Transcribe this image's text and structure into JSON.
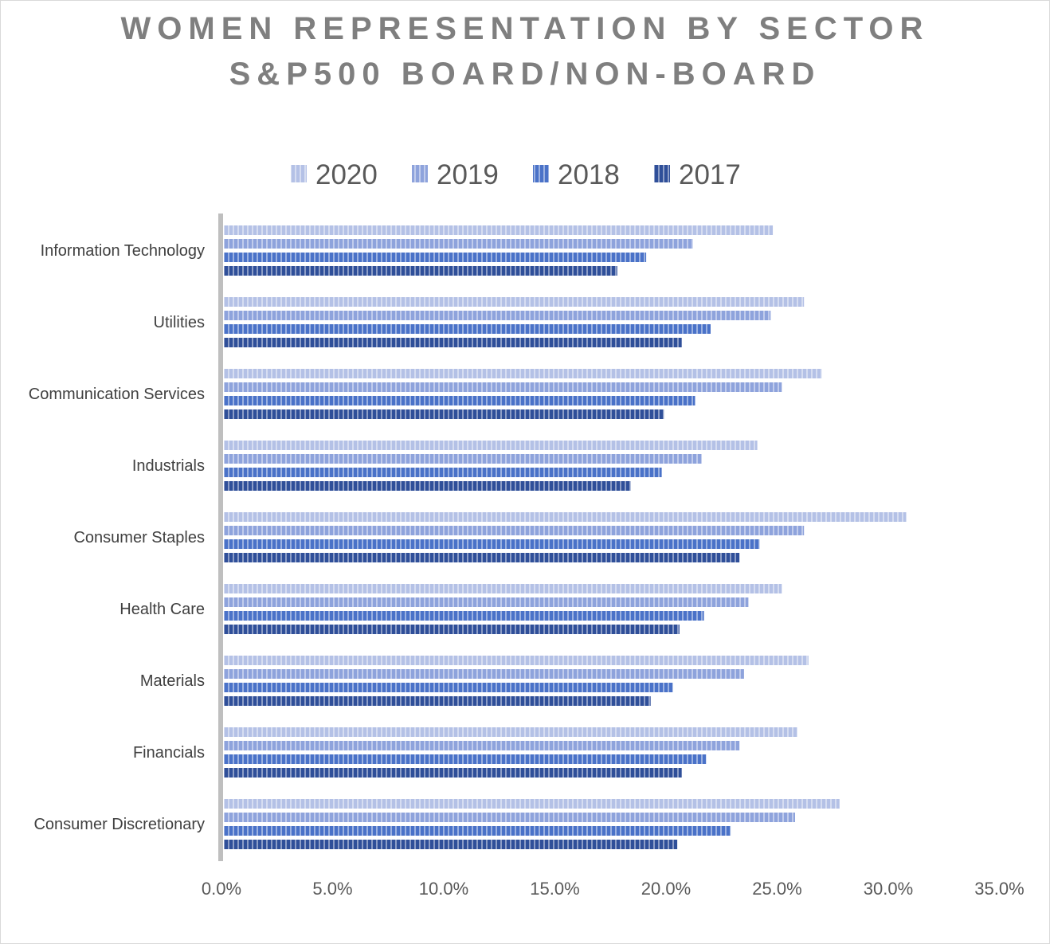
{
  "title_line1": "WOMEN REPRESENTATION BY SECTOR",
  "title_line2": "S&P500 BOARD/NON-BOARD",
  "chart_data": {
    "type": "bar",
    "orientation": "horizontal",
    "categories": [
      "Information Technology",
      "Utilities",
      "Communication Services",
      "Industrials",
      "Consumer Staples",
      "Health Care",
      "Materials",
      "Financials",
      "Consumer Discretionary"
    ],
    "series": [
      {
        "name": "2020",
        "color": "#b4c1e6",
        "values": [
          24.7,
          26.1,
          26.9,
          24.0,
          30.7,
          25.1,
          26.3,
          25.8,
          27.7
        ]
      },
      {
        "name": "2019",
        "color": "#8ea3dc",
        "values": [
          21.1,
          24.6,
          25.1,
          21.5,
          26.1,
          23.6,
          23.4,
          23.2,
          25.7
        ]
      },
      {
        "name": "2018",
        "color": "#4a72c8",
        "values": [
          19.0,
          21.9,
          21.2,
          19.7,
          24.1,
          21.6,
          20.2,
          21.7,
          22.8
        ]
      },
      {
        "name": "2017",
        "color": "#2f4f99",
        "values": [
          17.7,
          20.6,
          19.8,
          18.3,
          23.2,
          20.5,
          19.2,
          20.6,
          20.4
        ]
      }
    ],
    "x_ticks": [
      "0.0%",
      "5.0%",
      "10.0%",
      "15.0%",
      "20.0%",
      "25.0%",
      "30.0%",
      "35.0%"
    ],
    "xlim": [
      0,
      35
    ],
    "legend_position": "top"
  }
}
